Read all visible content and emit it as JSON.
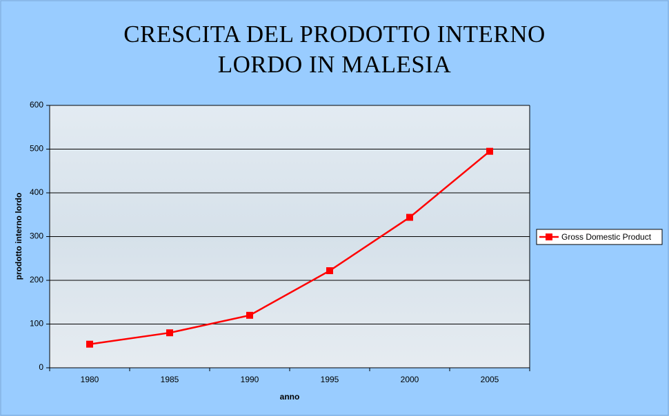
{
  "chart_data": {
    "type": "line",
    "title": "CRESCITA DEL PRODOTTO INTERNO LORDO IN MALESIA",
    "x_label": "anno",
    "y_label": "prodotto interno lordo",
    "categories": [
      "1980",
      "1985",
      "1990",
      "1995",
      "2000",
      "2005"
    ],
    "series": [
      {
        "name": "Gross Domestic Product",
        "color": "#ff0000",
        "values": [
          54,
          80,
          120,
          222,
          344,
          495
        ]
      }
    ],
    "ylim": [
      0,
      600
    ],
    "yticks": [
      0,
      100,
      200,
      300,
      400,
      500,
      600
    ],
    "grid": true,
    "legend": "right"
  }
}
